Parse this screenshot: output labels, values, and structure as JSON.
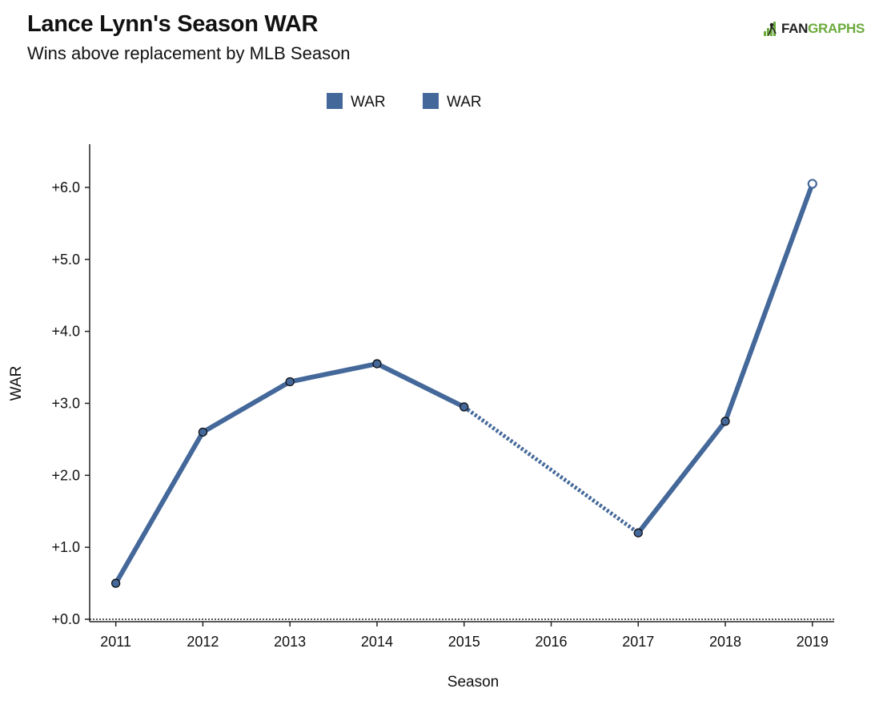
{
  "header": {
    "title": "Lance Lynn's Season WAR",
    "subtitle": "Wins above replacement by MLB Season"
  },
  "logo": {
    "text_part1": "FAN",
    "text_part2": "GRAPHS",
    "green_color": "#6bab3c",
    "icon": "fangraphs-logo-icon"
  },
  "chart_data": {
    "type": "line",
    "xlabel": "Season",
    "ylabel": "WAR",
    "x": [
      2011,
      2012,
      2013,
      2014,
      2015,
      2016,
      2017,
      2018,
      2019
    ],
    "x_tick_labels": [
      "2011",
      "2012",
      "2013",
      "2014",
      "2015",
      "2016",
      "2017",
      "2018",
      "2019"
    ],
    "y_tick_values": [
      0,
      1,
      2,
      3,
      4,
      5,
      6
    ],
    "y_tick_labels": [
      "+0.0",
      "+1.0",
      "+2.0",
      "+3.0",
      "+4.0",
      "+5.0",
      "+6.0"
    ],
    "ylim": [
      0,
      6.6
    ],
    "xlim": [
      2010.7,
      2019.25
    ],
    "grid": false,
    "baseline": 0,
    "legend_position": "top-center",
    "legend": [
      "WAR",
      "WAR"
    ],
    "series": [
      {
        "color": "#44689a",
        "points": [
          {
            "x": 2011,
            "y": 0.5
          },
          {
            "x": 2012,
            "y": 2.6
          },
          {
            "x": 2013,
            "y": 3.3
          },
          {
            "x": 2014,
            "y": 3.55
          },
          {
            "x": 2015,
            "y": 2.95
          },
          {
            "x": 2017,
            "y": 1.2
          },
          {
            "x": 2018,
            "y": 2.75
          },
          {
            "x": 2019,
            "y": 6.05
          }
        ],
        "gap_segments": [
          [
            2015,
            2017
          ]
        ],
        "projected_points": [
          2019
        ]
      }
    ]
  }
}
